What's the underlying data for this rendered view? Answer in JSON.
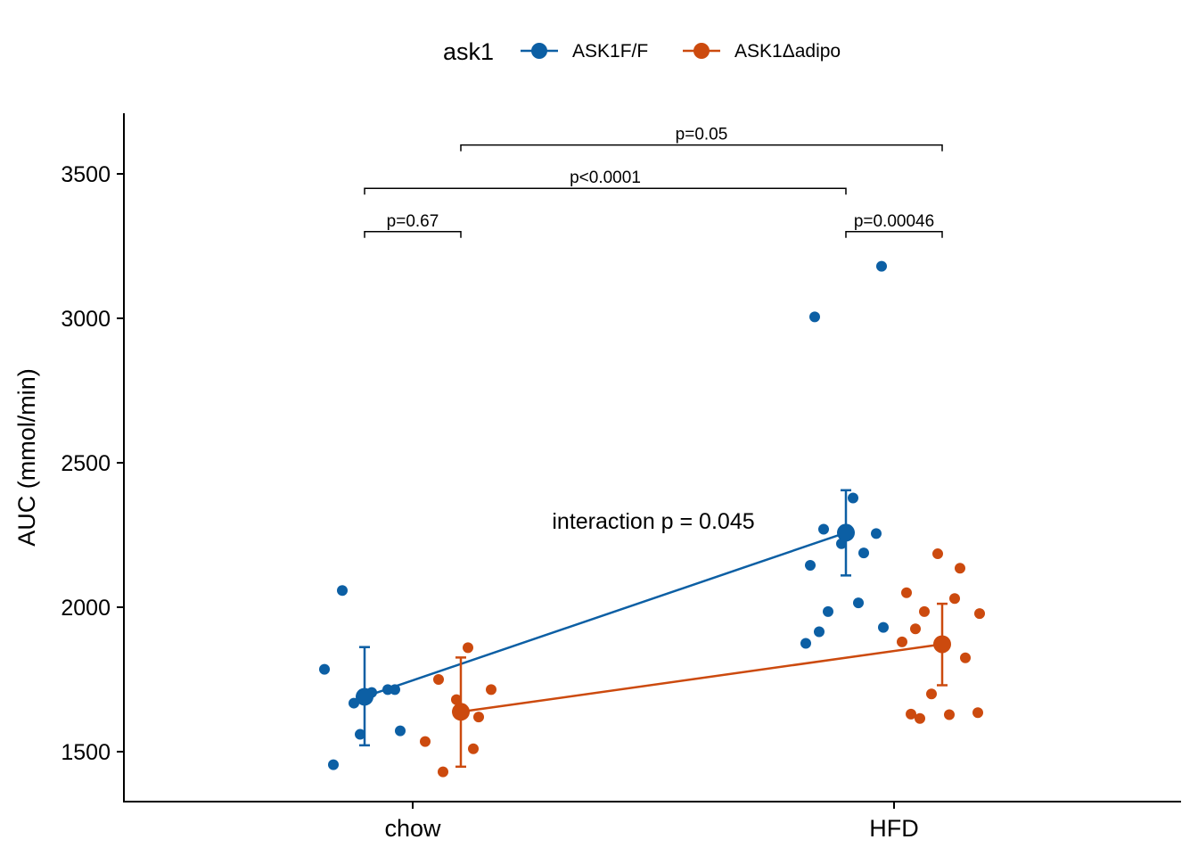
{
  "chart_data": {
    "type": "scatter",
    "title": "",
    "xlabel": "",
    "ylabel": "AUC (mmol/min)",
    "categories": [
      "chow",
      "HFD"
    ],
    "ylim": [
      1330,
      3700
    ],
    "yticks": [
      1500,
      2000,
      2500,
      3000,
      3500
    ],
    "grid": false,
    "legend": {
      "title": "ask1",
      "position": "top",
      "entries": [
        "ASK1F/F",
        "ASK1Δadipo"
      ]
    },
    "colors": {
      "ASK1F/F": "#0c5fa4",
      "ASK1Δadipo": "#cc4a0e"
    },
    "series": [
      {
        "name": "ASK1F/F",
        "means": [
          1690,
          2258
        ],
        "ci_low": [
          1522,
          2110
        ],
        "ci_high": [
          1862,
          2405
        ],
        "points": {
          "chow": [
            1785,
            1715,
            1668,
            1572,
            1455,
            1705,
            2058,
            1715,
            1560
          ],
          "HFD": [
            3180,
            3005,
            2378,
            2270,
            2255,
            2220,
            2188,
            2145,
            2015,
            1985,
            1930,
            1915,
            1875
          ]
        }
      },
      {
        "name": "ASK1Δadipo",
        "means": [
          1638,
          1872
        ],
        "ci_low": [
          1448,
          1730
        ],
        "ci_high": [
          1826,
          2012
        ],
        "points": {
          "chow": [
            1860,
            1750,
            1715,
            1680,
            1620,
            1535,
            1510,
            1430
          ],
          "HFD": [
            2185,
            2135,
            2050,
            2030,
            1985,
            1978,
            1925,
            1880,
            1825,
            1700,
            1635,
            1630,
            1628,
            1615
          ]
        }
      }
    ],
    "annotations": {
      "interaction": "interaction p = 0.045",
      "brackets": [
        {
          "label": "p=0.67",
          "from": "chow ASK1F/F",
          "to": "chow ASK1Δadipo",
          "y": 3300
        },
        {
          "label": "p=0.00046",
          "from": "HFD ASK1F/F",
          "to": "HFD ASK1Δadipo",
          "y": 3300
        },
        {
          "label": "p<0.0001",
          "from": "chow ASK1F/F",
          "to": "HFD ASK1F/F",
          "y": 3450
        },
        {
          "label": "p=0.05",
          "from": "chow ASK1Δadipo",
          "to": "HFD ASK1Δadipo",
          "y": 3600
        }
      ]
    }
  }
}
